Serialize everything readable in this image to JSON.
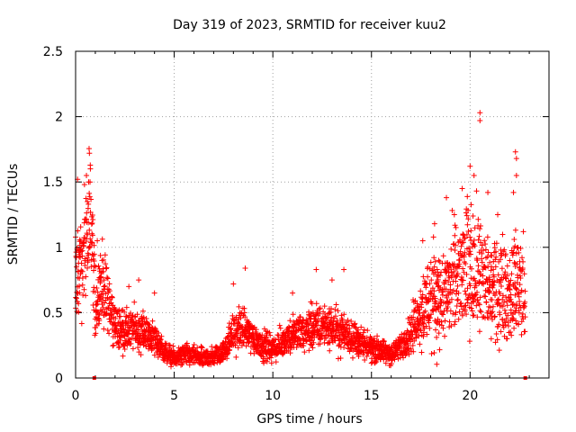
{
  "chart_data": {
    "type": "scatter",
    "title": "Day 319 of 2023, SRMTID for receiver kuu2",
    "xlabel": "GPS time / hours",
    "ylabel": "SRMTID / TECUs",
    "xlim": [
      0,
      24
    ],
    "ylim": [
      0,
      2.5
    ],
    "xticks": [
      0,
      5,
      10,
      15,
      20
    ],
    "xtick_labels": [
      "0",
      "5",
      "10",
      "15",
      "20"
    ],
    "yticks": [
      0,
      0.5,
      1,
      1.5,
      2,
      2.5
    ],
    "ytick_labels": [
      "0",
      "0.5",
      "1",
      "1.5",
      "2",
      "2.5"
    ],
    "grid": true,
    "marker": "plus",
    "color": "#ff0000",
    "trend": [
      [
        0.0,
        0.75
      ],
      [
        0.3,
        0.9
      ],
      [
        0.6,
        1.05
      ],
      [
        0.8,
        1.15
      ],
      [
        1.0,
        0.5
      ],
      [
        1.3,
        0.75
      ],
      [
        1.6,
        0.6
      ],
      [
        2.0,
        0.4
      ],
      [
        2.5,
        0.35
      ],
      [
        3.0,
        0.38
      ],
      [
        3.5,
        0.33
      ],
      [
        4.0,
        0.3
      ],
      [
        4.5,
        0.2
      ],
      [
        5.0,
        0.15
      ],
      [
        5.5,
        0.18
      ],
      [
        6.0,
        0.17
      ],
      [
        6.5,
        0.15
      ],
      [
        7.0,
        0.17
      ],
      [
        7.5,
        0.2
      ],
      [
        8.0,
        0.35
      ],
      [
        8.5,
        0.38
      ],
      [
        9.0,
        0.3
      ],
      [
        9.5,
        0.25
      ],
      [
        10.0,
        0.22
      ],
      [
        10.5,
        0.27
      ],
      [
        11.0,
        0.33
      ],
      [
        11.5,
        0.35
      ],
      [
        12.0,
        0.38
      ],
      [
        12.5,
        0.4
      ],
      [
        13.0,
        0.38
      ],
      [
        13.5,
        0.35
      ],
      [
        14.0,
        0.32
      ],
      [
        14.5,
        0.25
      ],
      [
        15.0,
        0.23
      ],
      [
        15.5,
        0.2
      ],
      [
        16.0,
        0.18
      ],
      [
        16.5,
        0.25
      ],
      [
        17.0,
        0.35
      ],
      [
        17.5,
        0.5
      ],
      [
        18.0,
        0.65
      ],
      [
        18.5,
        0.6
      ],
      [
        19.0,
        0.7
      ],
      [
        19.5,
        0.75
      ],
      [
        20.0,
        0.85
      ],
      [
        20.5,
        0.8
      ],
      [
        21.0,
        0.65
      ],
      [
        21.5,
        0.7
      ],
      [
        22.0,
        0.65
      ],
      [
        22.5,
        0.75
      ],
      [
        22.8,
        0.6
      ]
    ],
    "highlights": [
      [
        0.1,
        1.52
      ],
      [
        0.45,
        1.48
      ],
      [
        0.55,
        1.55
      ],
      [
        0.7,
        1.72
      ],
      [
        0.75,
        1.6
      ],
      [
        0.6,
        1.35
      ],
      [
        1.0,
        0.85
      ],
      [
        1.1,
        1.05
      ],
      [
        2.7,
        0.7
      ],
      [
        3.2,
        0.75
      ],
      [
        4.0,
        0.65
      ],
      [
        8.0,
        0.72
      ],
      [
        8.6,
        0.84
      ],
      [
        11.0,
        0.65
      ],
      [
        12.2,
        0.83
      ],
      [
        13.0,
        0.75
      ],
      [
        13.6,
        0.83
      ],
      [
        17.6,
        1.05
      ],
      [
        18.2,
        1.18
      ],
      [
        18.8,
        1.38
      ],
      [
        19.2,
        1.25
      ],
      [
        19.6,
        1.45
      ],
      [
        20.0,
        1.62
      ],
      [
        20.2,
        1.55
      ],
      [
        20.5,
        2.03
      ],
      [
        20.5,
        1.97
      ],
      [
        20.9,
        1.42
      ],
      [
        21.4,
        1.25
      ],
      [
        22.3,
        1.73
      ],
      [
        22.35,
        1.68
      ],
      [
        22.2,
        1.42
      ],
      [
        22.35,
        1.55
      ],
      [
        22.7,
        1.12
      ]
    ],
    "zero_markers": [
      0.95,
      22.8
    ]
  }
}
